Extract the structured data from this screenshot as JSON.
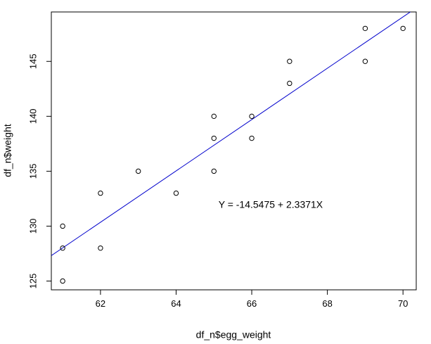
{
  "chart_data": {
    "type": "scatter",
    "xlabel": "df_n$egg_weight",
    "ylabel": "df_n$weight",
    "xlim": [
      60.7,
      70.35
    ],
    "ylim": [
      124.2,
      149.5
    ],
    "x_ticks": [
      62,
      64,
      66,
      68,
      70
    ],
    "x_tick_labels": [
      "62",
      "64",
      "66",
      "68",
      "70"
    ],
    "y_ticks": [
      125,
      130,
      135,
      140,
      145
    ],
    "y_tick_labels": [
      "125",
      "130",
      "135",
      "140",
      "145"
    ],
    "grid": false,
    "points": [
      {
        "x": 61,
        "y": 125
      },
      {
        "x": 61,
        "y": 128
      },
      {
        "x": 61,
        "y": 130
      },
      {
        "x": 62,
        "y": 128
      },
      {
        "x": 62,
        "y": 133
      },
      {
        "x": 63,
        "y": 135
      },
      {
        "x": 64,
        "y": 133
      },
      {
        "x": 65,
        "y": 135
      },
      {
        "x": 65,
        "y": 138
      },
      {
        "x": 65,
        "y": 140
      },
      {
        "x": 66,
        "y": 138
      },
      {
        "x": 66,
        "y": 140
      },
      {
        "x": 67,
        "y": 143
      },
      {
        "x": 67,
        "y": 145
      },
      {
        "x": 69,
        "y": 145
      },
      {
        "x": 69,
        "y": 148
      },
      {
        "x": 70,
        "y": 148
      }
    ],
    "fit_line": {
      "intercept": -14.5475,
      "slope": 2.3371,
      "color": "#0000cc"
    },
    "annotation": {
      "text": "Y = -14.5475 + 2.3371X",
      "x": 66.5,
      "y": 131.9
    }
  }
}
